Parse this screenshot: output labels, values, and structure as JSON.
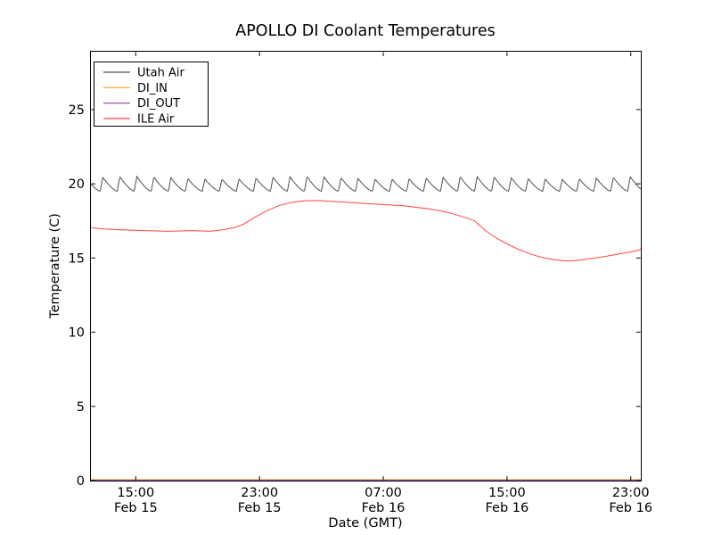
{
  "window": {
    "background": "#ffffff",
    "frame_color": "#000000"
  },
  "chart_data": {
    "type": "line",
    "title": "APOLLO DI Coolant Temperatures",
    "xlabel": "Date (GMT)",
    "ylabel": "Temperature (C)",
    "grid": false,
    "ylim": [
      0,
      28.9
    ],
    "xlim_hours": [
      12.1,
      47.65
    ],
    "x_epoch": "hours since Feb 15 00:00 GMT",
    "y_ticks": [
      0,
      5,
      10,
      15,
      20,
      25
    ],
    "x_ticks": [
      {
        "hours": 15,
        "time": "15:00",
        "date": "Feb 15"
      },
      {
        "hours": 23,
        "time": "23:00",
        "date": "Feb 15"
      },
      {
        "hours": 31,
        "time": "07:00",
        "date": "Feb 16"
      },
      {
        "hours": 39,
        "time": "15:00",
        "date": "Feb 16"
      },
      {
        "hours": 47,
        "time": "23:00",
        "date": "Feb 16"
      }
    ],
    "legend": {
      "position": "upper left"
    },
    "series": [
      {
        "name": "Utah Air",
        "color": "#4f4f4f",
        "shape": "sawtooth",
        "sawtooth": {
          "min": 19.5,
          "max": 20.4,
          "period_hours": 1.1,
          "rise_fraction": 0.15,
          "decay_power": 1.45,
          "phase_offset": 0.45,
          "amp_wobble": 0.1
        }
      },
      {
        "name": "DI_IN",
        "color": "#ffae42",
        "shape": "flat",
        "value": 0
      },
      {
        "name": "DI_OUT",
        "color": "#a050b0",
        "shape": "flat",
        "value": 0
      },
      {
        "name": "ILE Air",
        "color": "#ff4444",
        "shape": "points",
        "points": [
          [
            12.1,
            17.05
          ],
          [
            13.0,
            16.95
          ],
          [
            14.0,
            16.9
          ],
          [
            15.5,
            16.85
          ],
          [
            17.1,
            16.8
          ],
          [
            18.7,
            16.85
          ],
          [
            19.8,
            16.8
          ],
          [
            20.6,
            16.9
          ],
          [
            21.4,
            17.05
          ],
          [
            22.0,
            17.3
          ],
          [
            22.7,
            17.75
          ],
          [
            23.5,
            18.2
          ],
          [
            24.3,
            18.55
          ],
          [
            25.1,
            18.75
          ],
          [
            25.9,
            18.85
          ],
          [
            26.8,
            18.87
          ],
          [
            27.6,
            18.82
          ],
          [
            29.1,
            18.72
          ],
          [
            30.7,
            18.62
          ],
          [
            32.3,
            18.52
          ],
          [
            33.9,
            18.32
          ],
          [
            34.8,
            18.15
          ],
          [
            35.6,
            17.95
          ],
          [
            36.5,
            17.65
          ],
          [
            36.9,
            17.5
          ],
          [
            37.6,
            16.85
          ],
          [
            38.3,
            16.35
          ],
          [
            39.0,
            15.95
          ],
          [
            39.7,
            15.6
          ],
          [
            40.5,
            15.28
          ],
          [
            41.2,
            15.05
          ],
          [
            42.0,
            14.88
          ],
          [
            42.9,
            14.8
          ],
          [
            43.7,
            14.85
          ],
          [
            44.5,
            14.97
          ],
          [
            45.3,
            15.1
          ],
          [
            46.1,
            15.25
          ],
          [
            46.9,
            15.4
          ],
          [
            47.4,
            15.5
          ],
          [
            47.65,
            15.6
          ]
        ]
      }
    ]
  }
}
